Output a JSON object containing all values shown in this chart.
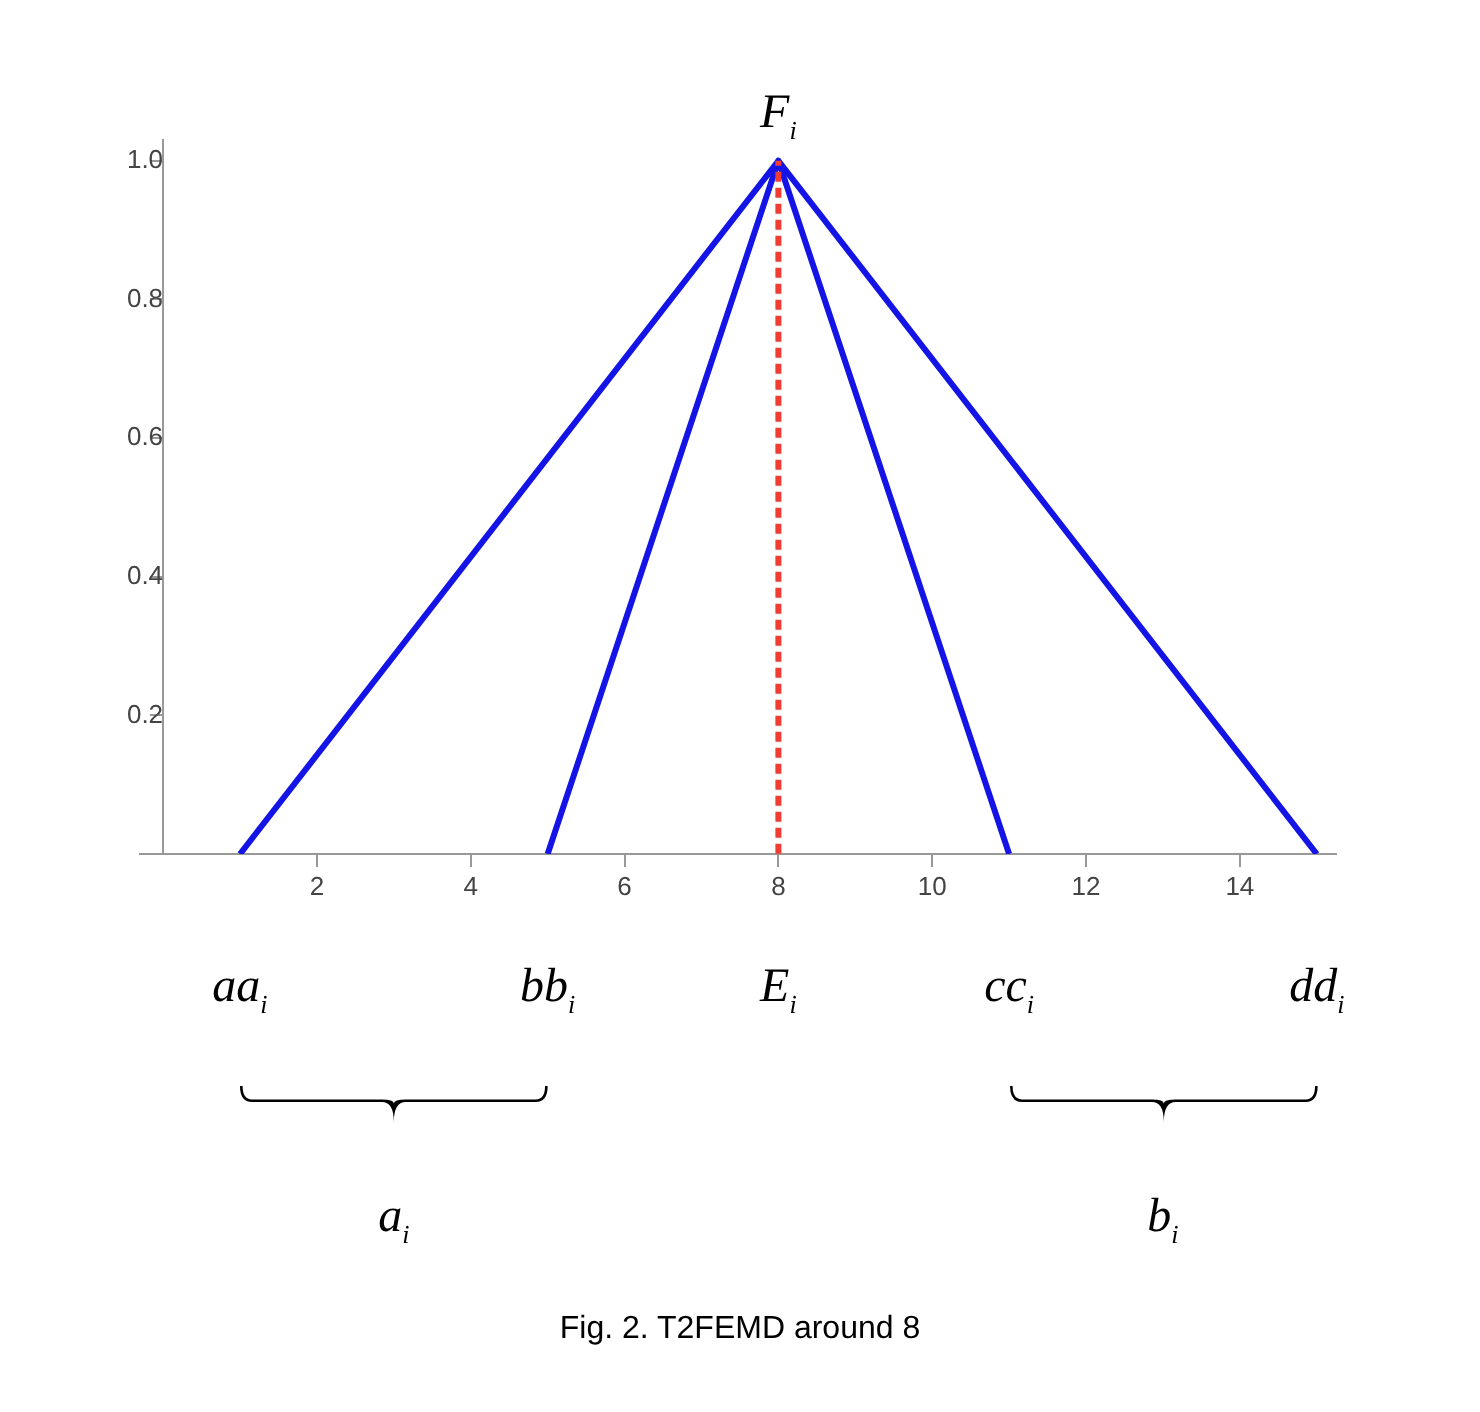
{
  "chart_data": {
    "type": "line",
    "xlim": [
      -0.3,
      15.25
    ],
    "ylim": [
      0,
      1.03
    ],
    "xticks": [
      2,
      4,
      6,
      8,
      10,
      12,
      14
    ],
    "yticks": [
      0.2,
      0.4,
      0.6,
      0.8,
      {
        "value": 1,
        "label": "1.0"
      }
    ],
    "grid": false,
    "legend": false,
    "marker": "none",
    "series": [
      {
        "type": "line",
        "color": "#1414e6",
        "x": [
          1,
          8,
          15
        ],
        "values": [
          0,
          1,
          0
        ]
      },
      {
        "type": "line",
        "color": "#1414e6",
        "x": [
          5,
          8,
          11
        ],
        "values": [
          0,
          1,
          0
        ]
      },
      {
        "type": "line",
        "color": "#f03c32",
        "line_style": "dashed",
        "x": [
          8,
          8
        ],
        "values": [
          0,
          1
        ]
      }
    ],
    "annotations": [
      {
        "text": "F$_{i}$",
        "x": 8,
        "y": 1
      },
      {
        "text": "aa$_{i}$",
        "x": 1,
        "y": 0
      },
      {
        "text": "bb$_{i}$",
        "x": 5,
        "y": 0
      },
      {
        "text": "E$_{i}$",
        "x": 8,
        "y": 0
      },
      {
        "text": "cc$_{i}$",
        "x": 11,
        "y": 0
      },
      {
        "text": "dd$_{i}$",
        "x": 15,
        "y": 0
      },
      "a$_{i}$",
      "b$_{i}$",
      "Fig. 2. T2FEMD around 8"
    ]
  }
}
